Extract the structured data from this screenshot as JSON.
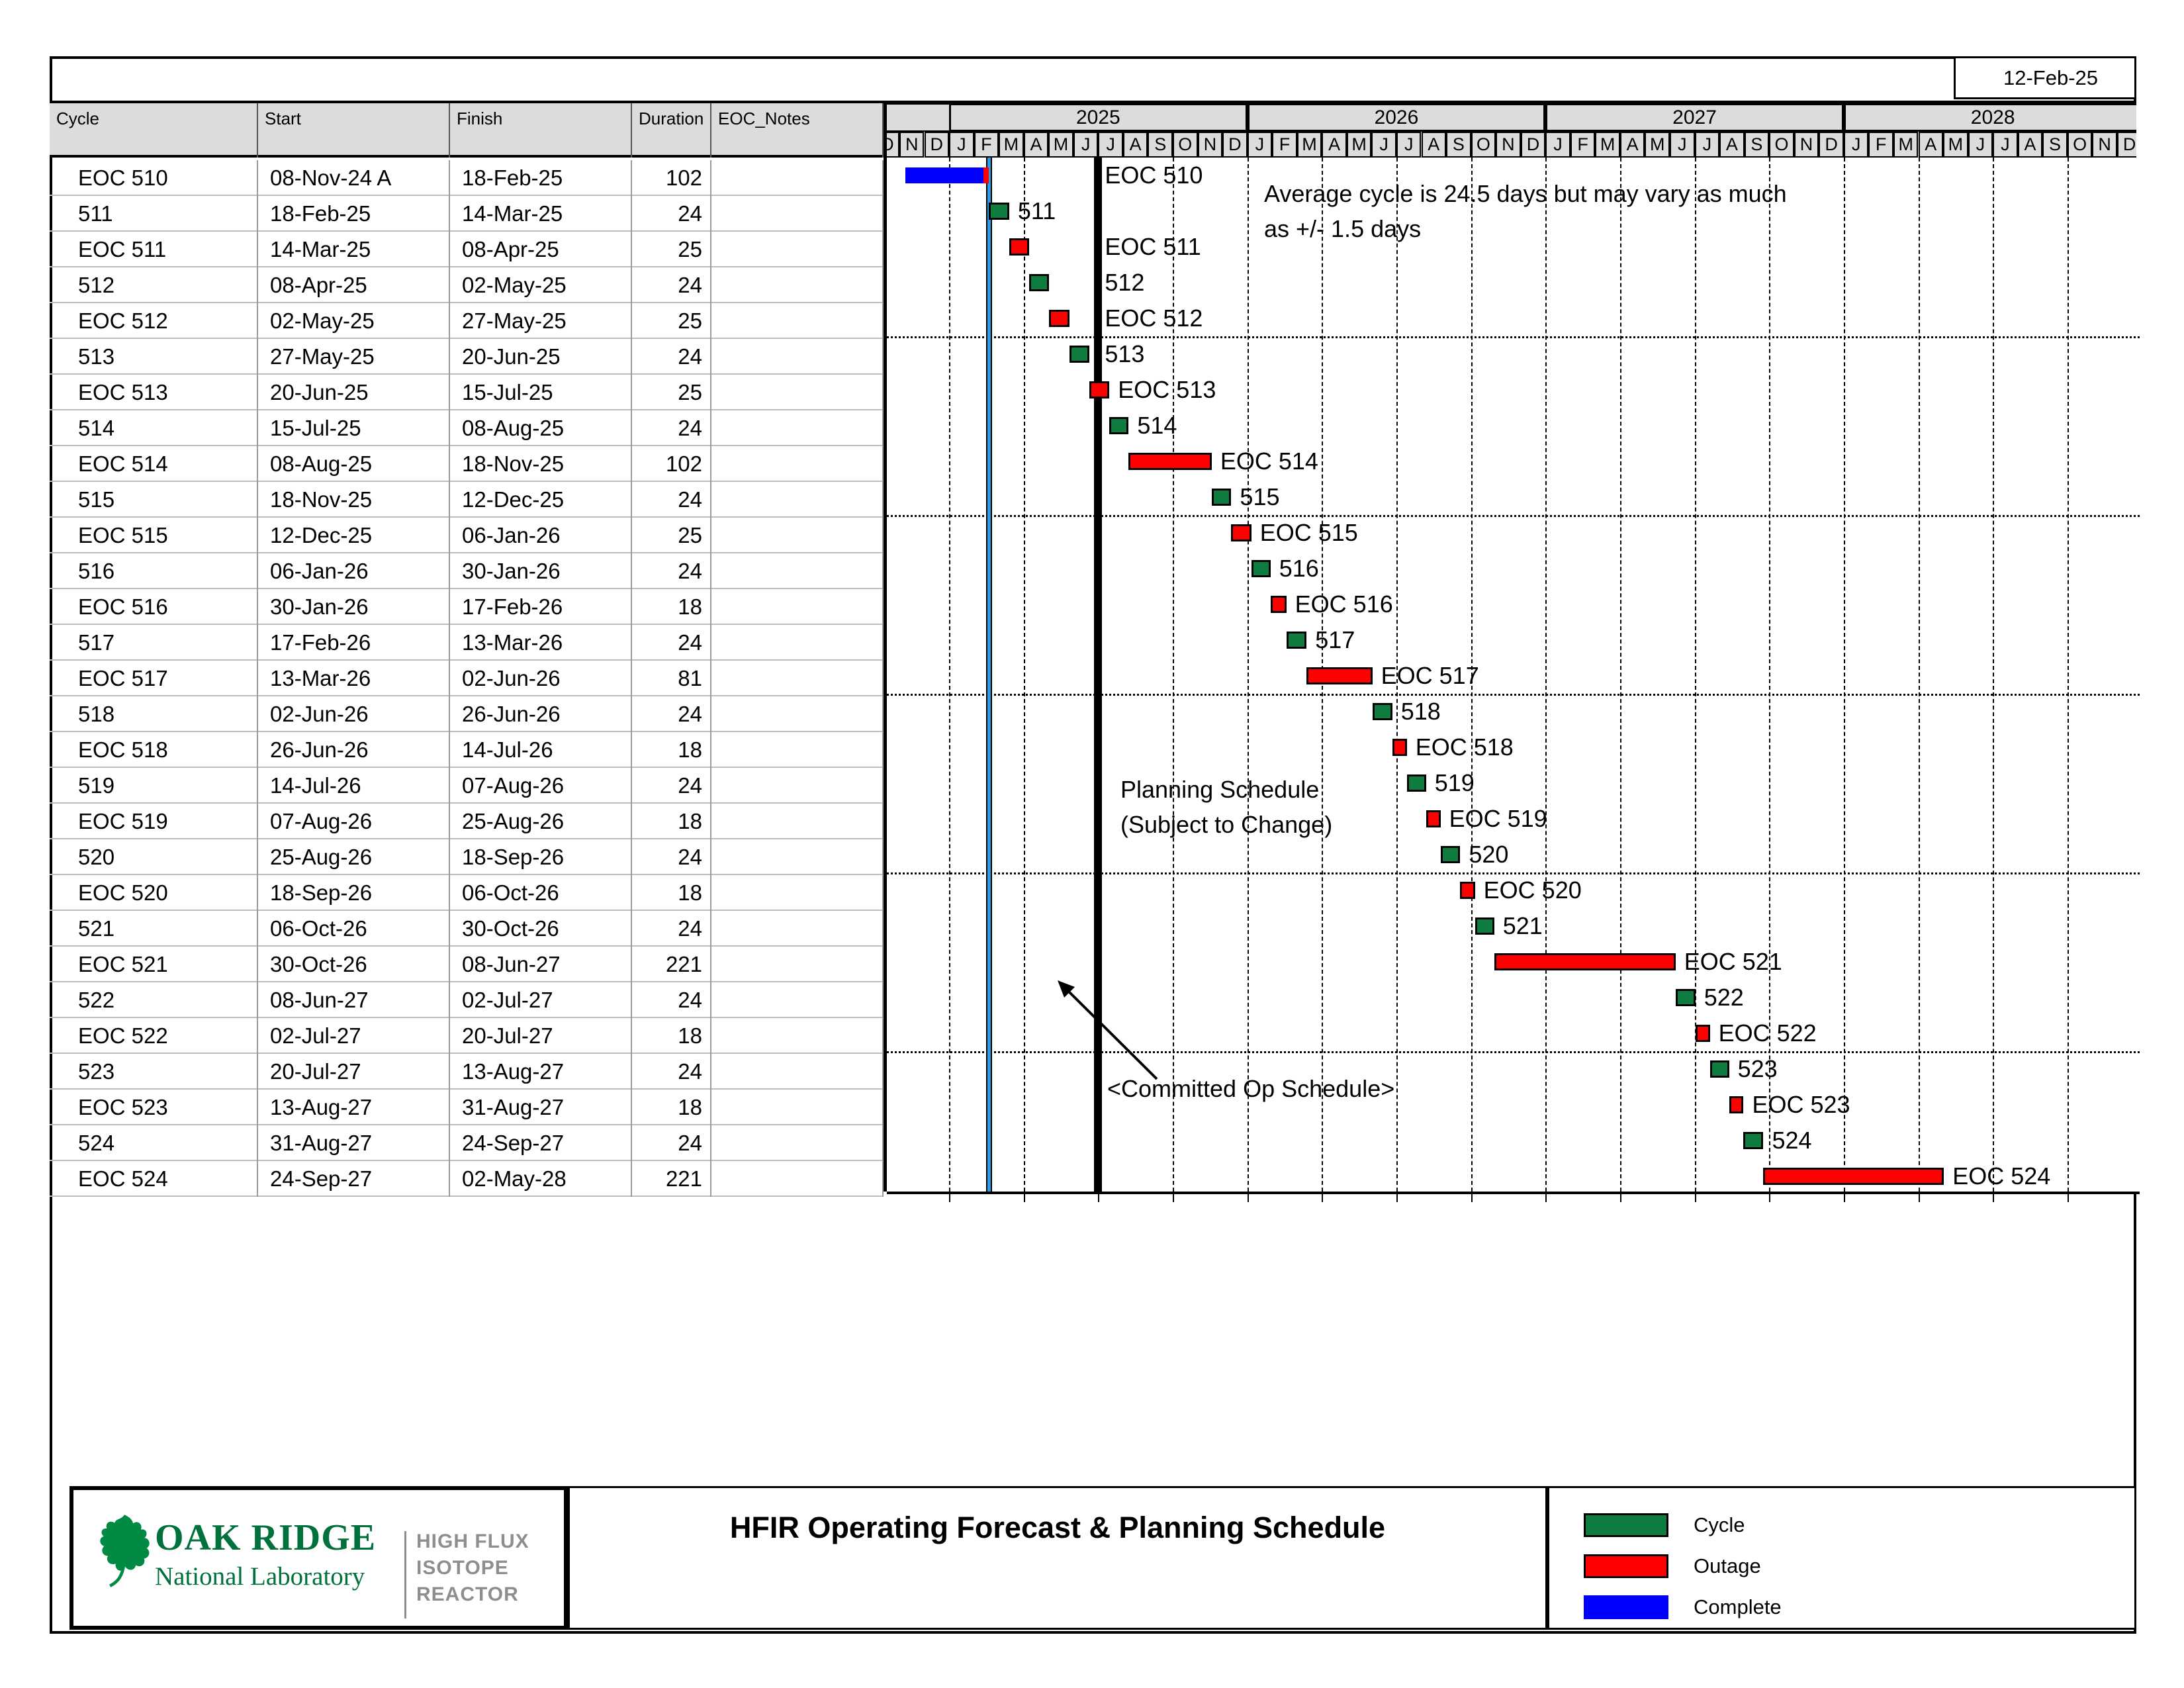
{
  "report_date": "12-Feb-25",
  "table": {
    "columns": [
      "Cycle",
      "Start",
      "Finish",
      "Duration",
      "EOC_Notes"
    ],
    "rows": [
      {
        "cycle": "EOC 510",
        "start": "08-Nov-24 A",
        "finish": "18-Feb-25",
        "duration": "102",
        "notes": "",
        "kind": "complete",
        "complete_through": "12-Feb-25"
      },
      {
        "cycle": "511",
        "start": "18-Feb-25",
        "finish": "14-Mar-25",
        "duration": "24",
        "notes": "",
        "kind": "cycle"
      },
      {
        "cycle": "EOC 511",
        "start": "14-Mar-25",
        "finish": "08-Apr-25",
        "duration": "25",
        "notes": "",
        "kind": "outage"
      },
      {
        "cycle": "512",
        "start": "08-Apr-25",
        "finish": "02-May-25",
        "duration": "24",
        "notes": "",
        "kind": "cycle"
      },
      {
        "cycle": "EOC 512",
        "start": "02-May-25",
        "finish": "27-May-25",
        "duration": "25",
        "notes": "",
        "kind": "outage"
      },
      {
        "cycle": "513",
        "start": "27-May-25",
        "finish": "20-Jun-25",
        "duration": "24",
        "notes": "",
        "kind": "cycle"
      },
      {
        "cycle": "EOC 513",
        "start": "20-Jun-25",
        "finish": "15-Jul-25",
        "duration": "25",
        "notes": "",
        "kind": "outage"
      },
      {
        "cycle": "514",
        "start": "15-Jul-25",
        "finish": "08-Aug-25",
        "duration": "24",
        "notes": "",
        "kind": "cycle"
      },
      {
        "cycle": "EOC 514",
        "start": "08-Aug-25",
        "finish": "18-Nov-25",
        "duration": "102",
        "notes": "",
        "kind": "outage"
      },
      {
        "cycle": "515",
        "start": "18-Nov-25",
        "finish": "12-Dec-25",
        "duration": "24",
        "notes": "",
        "kind": "cycle"
      },
      {
        "cycle": "EOC 515",
        "start": "12-Dec-25",
        "finish": "06-Jan-26",
        "duration": "25",
        "notes": "",
        "kind": "outage"
      },
      {
        "cycle": "516",
        "start": "06-Jan-26",
        "finish": "30-Jan-26",
        "duration": "24",
        "notes": "",
        "kind": "cycle"
      },
      {
        "cycle": "EOC 516",
        "start": "30-Jan-26",
        "finish": "17-Feb-26",
        "duration": "18",
        "notes": "",
        "kind": "outage"
      },
      {
        "cycle": "517",
        "start": "17-Feb-26",
        "finish": "13-Mar-26",
        "duration": "24",
        "notes": "",
        "kind": "cycle"
      },
      {
        "cycle": "EOC 517",
        "start": "13-Mar-26",
        "finish": "02-Jun-26",
        "duration": "81",
        "notes": "",
        "kind": "outage"
      },
      {
        "cycle": "518",
        "start": "02-Jun-26",
        "finish": "26-Jun-26",
        "duration": "24",
        "notes": "",
        "kind": "cycle"
      },
      {
        "cycle": "EOC 518",
        "start": "26-Jun-26",
        "finish": "14-Jul-26",
        "duration": "18",
        "notes": "",
        "kind": "outage"
      },
      {
        "cycle": "519",
        "start": "14-Jul-26",
        "finish": "07-Aug-26",
        "duration": "24",
        "notes": "",
        "kind": "cycle"
      },
      {
        "cycle": "EOC 519",
        "start": "07-Aug-26",
        "finish": "25-Aug-26",
        "duration": "18",
        "notes": "",
        "kind": "outage"
      },
      {
        "cycle": "520",
        "start": "25-Aug-26",
        "finish": "18-Sep-26",
        "duration": "24",
        "notes": "",
        "kind": "cycle"
      },
      {
        "cycle": "EOC 520",
        "start": "18-Sep-26",
        "finish": "06-Oct-26",
        "duration": "18",
        "notes": "",
        "kind": "outage"
      },
      {
        "cycle": "521",
        "start": "06-Oct-26",
        "finish": "30-Oct-26",
        "duration": "24",
        "notes": "",
        "kind": "cycle"
      },
      {
        "cycle": "EOC 521",
        "start": "30-Oct-26",
        "finish": "08-Jun-27",
        "duration": "221",
        "notes": "",
        "kind": "outage"
      },
      {
        "cycle": "522",
        "start": "08-Jun-27",
        "finish": "02-Jul-27",
        "duration": "24",
        "notes": "",
        "kind": "cycle"
      },
      {
        "cycle": "EOC 522",
        "start": "02-Jul-27",
        "finish": "20-Jul-27",
        "duration": "18",
        "notes": "",
        "kind": "outage"
      },
      {
        "cycle": "523",
        "start": "20-Jul-27",
        "finish": "13-Aug-27",
        "duration": "24",
        "notes": "",
        "kind": "cycle"
      },
      {
        "cycle": "EOC 523",
        "start": "13-Aug-27",
        "finish": "31-Aug-27",
        "duration": "18",
        "notes": "",
        "kind": "outage"
      },
      {
        "cycle": "524",
        "start": "31-Aug-27",
        "finish": "24-Sep-27",
        "duration": "24",
        "notes": "",
        "kind": "cycle"
      },
      {
        "cycle": "EOC 524",
        "start": "24-Sep-27",
        "finish": "02-May-28",
        "duration": "221",
        "notes": "",
        "kind": "outage"
      }
    ]
  },
  "chart_data": {
    "type": "bar",
    "subtype": "gantt",
    "title": "HFIR Operating Forecast & Planning Schedule",
    "timeline": {
      "start_month": "Oct-24",
      "end_month": "Dec-28",
      "gridlines": "quarterly dashed vertical, dotted horizontal every 5 rows"
    },
    "years": [
      "2025",
      "2026",
      "2027",
      "2028"
    ],
    "month_letters": "JFMAMJJASOND",
    "status_line_date": "18-Feb-25",
    "committed_line_date": "01-Jul-25",
    "tasks": [
      {
        "name": "EOC 510",
        "start": "08-Nov-24",
        "finish": "18-Feb-25",
        "status": "complete",
        "complete_through": "12-Feb-25"
      },
      {
        "name": "511",
        "start": "18-Feb-25",
        "finish": "14-Mar-25",
        "status": "cycle"
      },
      {
        "name": "EOC 511",
        "start": "14-Mar-25",
        "finish": "08-Apr-25",
        "status": "outage"
      },
      {
        "name": "512",
        "start": "08-Apr-25",
        "finish": "02-May-25",
        "status": "cycle"
      },
      {
        "name": "EOC 512",
        "start": "02-May-25",
        "finish": "27-May-25",
        "status": "outage"
      },
      {
        "name": "513",
        "start": "27-May-25",
        "finish": "20-Jun-25",
        "status": "cycle"
      },
      {
        "name": "EOC 513",
        "start": "20-Jun-25",
        "finish": "15-Jul-25",
        "status": "outage"
      },
      {
        "name": "514",
        "start": "15-Jul-25",
        "finish": "08-Aug-25",
        "status": "cycle"
      },
      {
        "name": "EOC 514",
        "start": "08-Aug-25",
        "finish": "18-Nov-25",
        "status": "outage"
      },
      {
        "name": "515",
        "start": "18-Nov-25",
        "finish": "12-Dec-25",
        "status": "cycle"
      },
      {
        "name": "EOC 515",
        "start": "12-Dec-25",
        "finish": "06-Jan-26",
        "status": "outage"
      },
      {
        "name": "516",
        "start": "06-Jan-26",
        "finish": "30-Jan-26",
        "status": "cycle"
      },
      {
        "name": "EOC 516",
        "start": "30-Jan-26",
        "finish": "17-Feb-26",
        "status": "outage"
      },
      {
        "name": "517",
        "start": "17-Feb-26",
        "finish": "13-Mar-26",
        "status": "cycle"
      },
      {
        "name": "EOC 517",
        "start": "13-Mar-26",
        "finish": "02-Jun-26",
        "status": "outage"
      },
      {
        "name": "518",
        "start": "02-Jun-26",
        "finish": "26-Jun-26",
        "status": "cycle"
      },
      {
        "name": "EOC 518",
        "start": "26-Jun-26",
        "finish": "14-Jul-26",
        "status": "outage"
      },
      {
        "name": "519",
        "start": "14-Jul-26",
        "finish": "07-Aug-26",
        "status": "cycle"
      },
      {
        "name": "EOC 519",
        "start": "07-Aug-26",
        "finish": "25-Aug-26",
        "status": "outage"
      },
      {
        "name": "520",
        "start": "25-Aug-26",
        "finish": "18-Sep-26",
        "status": "cycle"
      },
      {
        "name": "EOC 520",
        "start": "18-Sep-26",
        "finish": "06-Oct-26",
        "status": "outage"
      },
      {
        "name": "521",
        "start": "06-Oct-26",
        "finish": "30-Oct-26",
        "status": "cycle"
      },
      {
        "name": "EOC 521",
        "start": "30-Oct-26",
        "finish": "08-Jun-27",
        "status": "outage"
      },
      {
        "name": "522",
        "start": "08-Jun-27",
        "finish": "02-Jul-27",
        "status": "cycle"
      },
      {
        "name": "EOC 522",
        "start": "02-Jul-27",
        "finish": "20-Jul-27",
        "status": "outage"
      },
      {
        "name": "523",
        "start": "20-Jul-27",
        "finish": "13-Aug-27",
        "status": "cycle"
      },
      {
        "name": "EOC 523",
        "start": "13-Aug-27",
        "finish": "31-Aug-27",
        "status": "outage"
      },
      {
        "name": "524",
        "start": "31-Aug-27",
        "finish": "24-Sep-27",
        "status": "cycle"
      },
      {
        "name": "EOC 524",
        "start": "24-Sep-27",
        "finish": "02-May-28",
        "status": "outage"
      }
    ]
  },
  "annotations": {
    "average_line1": "Average cycle is 24.5 days but may vary as much",
    "average_line2": "as +/- 1.5 days",
    "planning_line1": "Planning Schedule",
    "planning_line2": "(Subject to Change)",
    "committed_label": "<Committed Op Schedule>"
  },
  "legend": {
    "items": [
      {
        "label": "Cycle",
        "color": "#0F7B3F",
        "border": true
      },
      {
        "label": "Outage",
        "color": "#FF0000",
        "border": true
      },
      {
        "label": "Complete",
        "color": "#0000FF",
        "border": false
      }
    ]
  },
  "footer": {
    "title": "HFIR Operating Forecast & Planning Schedule",
    "logo": {
      "org_name": "OAK RIDGE",
      "org_sub": "National Laboratory",
      "facility_lines": [
        "HIGH FLUX",
        "ISOTOPE",
        "REACTOR"
      ]
    }
  },
  "colors": {
    "cycle": "#0F7B3F",
    "outage": "#FF0000",
    "complete": "#0000FF",
    "status_line": "#2E9BE8",
    "header_bg": "#DCDCDC"
  }
}
